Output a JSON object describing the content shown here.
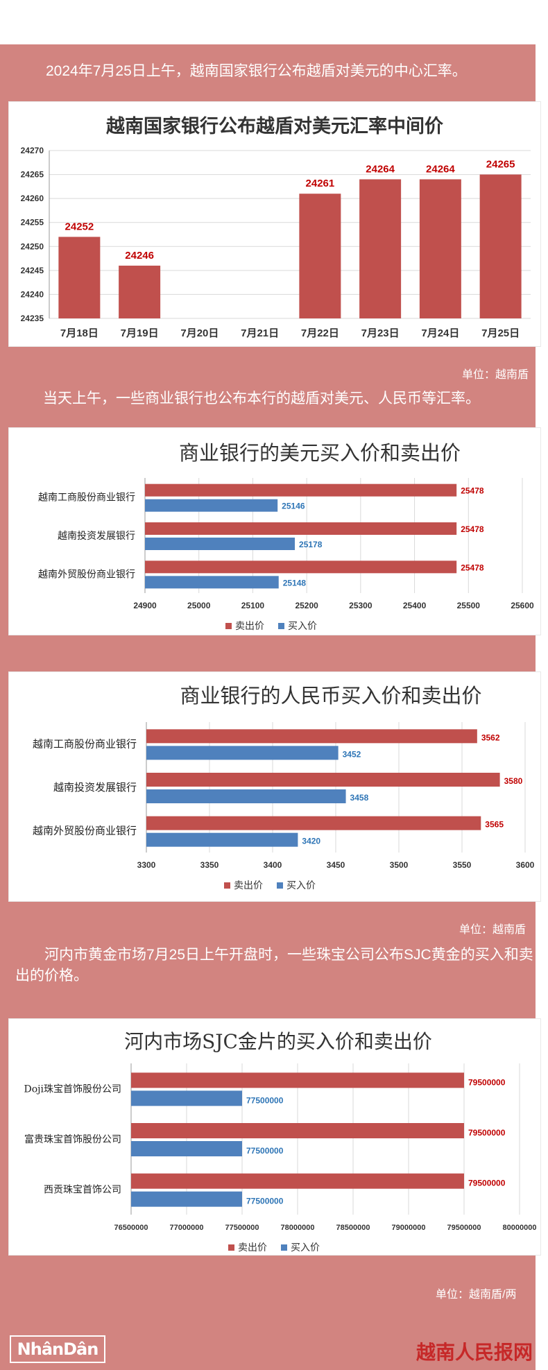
{
  "intro1": "2024年7月25日上午，越南国家银行公布越盾对美元的中心汇率。",
  "intro2": "当天上午，一些商业银行也公布本行的越盾对美元、人民币等汇率。",
  "intro3": "河内市黄金市场7月25日上午开盘时，一些珠宝公司公布SJC黄金的买入和卖出的价格。",
  "unit_vnd": "单位：越南盾",
  "unit_vnd2": "单位：越南盾",
  "unit_gold": "单位：越南盾/两",
  "footer_logo": "NhânDân",
  "footer_site": "越南人民报网",
  "colors": {
    "sell": "#c0504d",
    "buy": "#4f81bd",
    "panel": "#d28480",
    "grid": "#d9d9d9"
  },
  "chart_data": [
    {
      "type": "bar",
      "title": "越南国家银行公布越盾对美元汇率中间价",
      "categories": [
        "7月18日",
        "7月19日",
        "7月20日",
        "7月21日",
        "7月22日",
        "7月23日",
        "7月24日",
        "7月25日"
      ],
      "values": [
        24252,
        24246,
        null,
        null,
        24261,
        24264,
        24264,
        24265
      ],
      "ylim": [
        24235,
        24270
      ],
      "yticks": [
        "24235",
        "24240",
        "24245",
        "24250",
        "24255",
        "24260",
        "24265",
        "24270"
      ],
      "grid": true
    },
    {
      "type": "bar",
      "orientation": "horizontal",
      "title": "商业银行的美元买入价和卖出价",
      "categories": [
        "越南工商股份商业银行",
        "越南投资发展银行",
        "越南外贸股份商业银行"
      ],
      "series": [
        {
          "name": "卖出价",
          "values": [
            25478,
            25478,
            25478
          ]
        },
        {
          "name": "买入价",
          "values": [
            25146,
            25178,
            25148
          ]
        }
      ],
      "xlim": [
        24900,
        25600
      ],
      "xticks": [
        "24900",
        "25000",
        "25100",
        "25200",
        "25300",
        "25400",
        "25500",
        "25600"
      ],
      "legend": "bottom"
    },
    {
      "type": "bar",
      "orientation": "horizontal",
      "title": "商业银行的人民币买入价和卖出价",
      "categories": [
        "越南工商股份商业银行",
        "越南投资发展银行",
        "越南外贸股份商业银行"
      ],
      "series": [
        {
          "name": "卖出价",
          "values": [
            3562,
            3580,
            3565
          ]
        },
        {
          "name": "买入价",
          "values": [
            3452,
            3458,
            3420
          ]
        }
      ],
      "xlim": [
        3300,
        3600
      ],
      "xticks": [
        "3300",
        "3350",
        "3400",
        "3450",
        "3500",
        "3550",
        "3600"
      ],
      "legend": "bottom"
    },
    {
      "type": "bar",
      "orientation": "horizontal",
      "title": "河内市场SJC金片的买入价和卖出价",
      "categories": [
        "Doji珠宝首饰股份公司",
        "富贵珠宝首饰股份公司",
        "西贡珠宝首饰公司"
      ],
      "series": [
        {
          "name": "卖出价",
          "values": [
            79500000,
            79500000,
            79500000
          ]
        },
        {
          "name": "买入价",
          "values": [
            77500000,
            77500000,
            77500000
          ]
        }
      ],
      "xlim": [
        76500000,
        80000000
      ],
      "xticks": [
        "76500000",
        "77000000",
        "77500000",
        "78000000",
        "78500000",
        "79000000",
        "79500000",
        "80000000"
      ],
      "legend": "bottom"
    }
  ]
}
